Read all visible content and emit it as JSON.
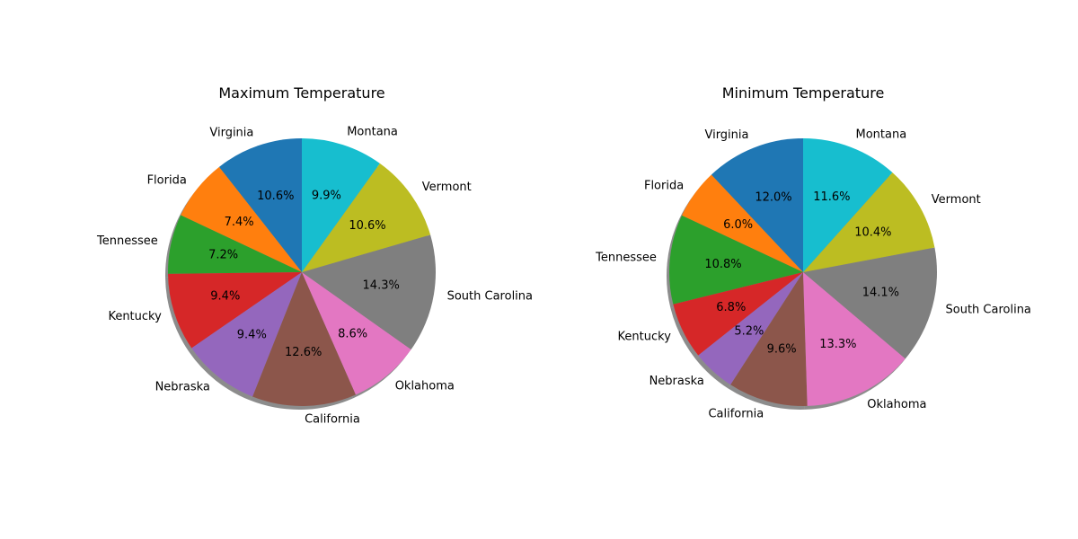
{
  "chart_data": [
    {
      "type": "pie",
      "title": "Maximum Temperature",
      "start_angle_deg": 90,
      "direction": "counterclockwise",
      "shadow": true,
      "labels": [
        "Virginia",
        "Florida",
        "Tennessee",
        "Kentucky",
        "Nebraska",
        "California",
        "Oklahoma",
        "South Carolina",
        "Vermont",
        "Montana"
      ],
      "values": [
        10.6,
        7.4,
        7.2,
        9.4,
        9.4,
        12.6,
        8.6,
        14.3,
        10.6,
        9.9
      ],
      "pct_labels": [
        "10.6%",
        "7.4%",
        "7.2%",
        "9.4%",
        "9.4%",
        "12.6%",
        "8.6%",
        "14.3%",
        "10.6%",
        "9.9%"
      ],
      "colors": [
        "#1f77b4",
        "#ff7f0e",
        "#2ca02c",
        "#d62728",
        "#9467bd",
        "#8c564b",
        "#e377c2",
        "#7f7f7f",
        "#bcbd22",
        "#17becf"
      ]
    },
    {
      "type": "pie",
      "title": "Minimum Temperature",
      "start_angle_deg": 90,
      "direction": "counterclockwise",
      "shadow": true,
      "labels": [
        "Virginia",
        "Florida",
        "Tennessee",
        "Kentucky",
        "Nebraska",
        "California",
        "Oklahoma",
        "South Carolina",
        "Vermont",
        "Montana"
      ],
      "values": [
        12.0,
        6.0,
        10.8,
        6.8,
        5.2,
        9.6,
        13.3,
        14.1,
        10.4,
        11.6
      ],
      "pct_labels": [
        "12.0%",
        "6.0%",
        "10.8%",
        "6.8%",
        "5.2%",
        "9.6%",
        "13.3%",
        "14.1%",
        "10.4%",
        "11.6%"
      ],
      "colors": [
        "#1f77b4",
        "#ff7f0e",
        "#2ca02c",
        "#d62728",
        "#9467bd",
        "#8c564b",
        "#e377c2",
        "#7f7f7f",
        "#bcbd22",
        "#17becf"
      ]
    }
  ]
}
